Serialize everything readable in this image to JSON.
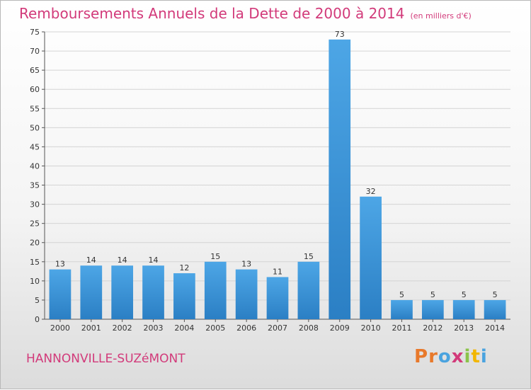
{
  "header": {
    "title": "Remboursements Annuels de la Dette de 2000 à 2014",
    "unit": "(en milliers d'€)"
  },
  "footer": {
    "commune": "HANNONVILLE-SUZéMONT",
    "logo_letters": [
      "P",
      "r",
      "o",
      "x",
      "i",
      "t",
      "i"
    ],
    "logo_colors": [
      "#e8792b",
      "#e8792b",
      "#4aa3df",
      "#d23a7a",
      "#8bc34a",
      "#f2b600",
      "#4aa3df"
    ]
  },
  "colors": {
    "bar": "#4da6e6",
    "bar_dark": "#2b7fc4",
    "text": "#d23a7a"
  },
  "chart_data": {
    "type": "bar",
    "title": "Remboursements Annuels de la Dette de 2000 à 2014",
    "categories": [
      "2000",
      "2001",
      "2002",
      "2003",
      "2004",
      "2005",
      "2006",
      "2007",
      "2008",
      "2009",
      "2010",
      "2011",
      "2012",
      "2013",
      "2014"
    ],
    "values": [
      13,
      14,
      14,
      14,
      12,
      15,
      13,
      11,
      15,
      73,
      32,
      5,
      5,
      5,
      5
    ],
    "ylim": [
      0,
      75
    ],
    "yticks": [
      0,
      5,
      10,
      15,
      20,
      25,
      30,
      35,
      40,
      45,
      50,
      55,
      60,
      65,
      70,
      75
    ],
    "grid": true,
    "xlabel": "",
    "ylabel": ""
  }
}
